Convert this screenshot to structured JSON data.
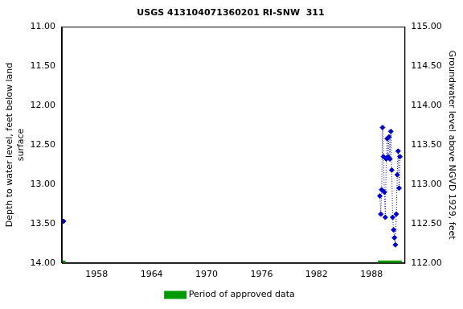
{
  "chart_data": {
    "type": "scatter",
    "title": "USGS 413104071360201 RI-SNW  311",
    "y_label": "Depth to water level, feet below land surface",
    "y2_label": "Groundwater level above NGVD 1929, feet",
    "xlim": [
      1954.2,
      1991.6
    ],
    "xticks": [
      1958,
      1964,
      1970,
      1976,
      1982,
      1988
    ],
    "ylim": [
      14.0,
      11.0
    ],
    "yticks": [
      {
        "value": 11,
        "label": "11.00"
      },
      {
        "value": 11.5,
        "label": "11.50"
      },
      {
        "value": 12,
        "label": "12.00"
      },
      {
        "value": 12.5,
        "label": "12.50"
      },
      {
        "value": 13,
        "label": "13.00"
      },
      {
        "value": 13.5,
        "label": "13.50"
      },
      {
        "value": 14,
        "label": "14.00"
      }
    ],
    "y2lim": [
      112.0,
      115.0
    ],
    "y2ticks": [
      {
        "value": 112,
        "label": "112.00"
      },
      {
        "value": 112.5,
        "label": "112.50"
      },
      {
        "value": 113,
        "label": "113.00"
      },
      {
        "value": 113.5,
        "label": "113.50"
      },
      {
        "value": 114,
        "label": "114.00"
      },
      {
        "value": 114.5,
        "label": "114.50"
      },
      {
        "value": 115,
        "label": "115.00"
      }
    ],
    "grid": false,
    "legend": "bottom",
    "series": [
      {
        "color": "#0000cc",
        "marker": "diamond",
        "line_style": "dotted",
        "x": [
          1954.4,
          null,
          1988.9,
          1989.0,
          1989.1,
          1989.2,
          1989.3,
          1989.4,
          1989.5,
          1989.6,
          1989.7,
          1989.8,
          1989.9,
          1990.0,
          1990.1,
          1990.2,
          1990.3,
          1990.4,
          1990.5,
          1990.6,
          1990.7,
          1990.8,
          1990.9,
          1991.0,
          1991.1
        ],
        "values": [
          13.47,
          null,
          13.15,
          13.38,
          13.07,
          12.28,
          12.65,
          13.1,
          13.42,
          12.68,
          12.42,
          12.65,
          12.4,
          12.68,
          12.33,
          12.82,
          13.42,
          13.58,
          13.68,
          13.77,
          13.38,
          12.88,
          12.58,
          13.05,
          12.65
        ]
      },
      {
        "name": "Period of approved data",
        "color": "#009900",
        "line_style": "solid",
        "x": [
          1954.3,
          1954.6,
          null,
          1988.7,
          1991.3
        ],
        "values": [
          14.0,
          14.0,
          null,
          14.0,
          14.0
        ]
      }
    ]
  }
}
